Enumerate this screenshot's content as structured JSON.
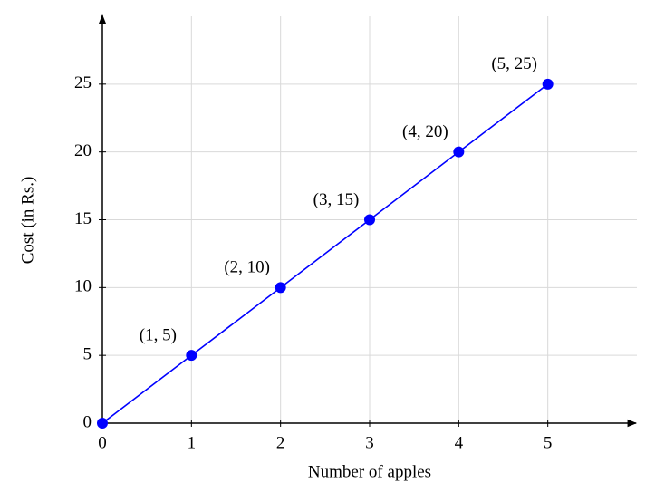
{
  "chart_data": {
    "type": "line",
    "x": [
      0,
      1,
      2,
      3,
      4,
      5
    ],
    "values": [
      0,
      5,
      10,
      15,
      20,
      25
    ],
    "value_labels": [
      null,
      "(1, 5)",
      "(2, 10)",
      "(3, 15)",
      "(4, 20)",
      "(5, 25)"
    ],
    "color": "#0000ff",
    "xlabel": "Number of apples",
    "ylabel": "Cost (in Rs.)",
    "xlim": [
      0,
      6
    ],
    "xticks": [
      0,
      1,
      2,
      3,
      4,
      5
    ],
    "ylim": [
      0,
      30
    ],
    "yticks": [
      0,
      5,
      10,
      15,
      20,
      25
    ],
    "grid": true
  }
}
